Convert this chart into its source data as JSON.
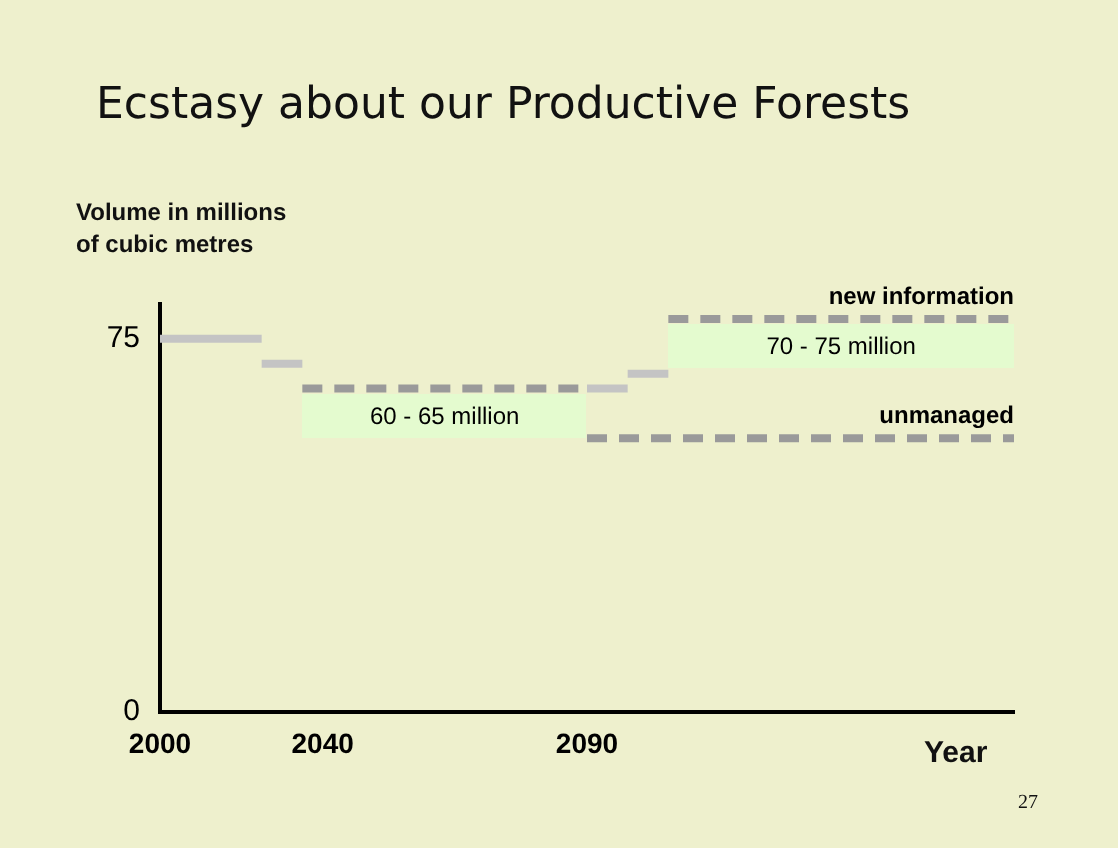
{
  "chart_data": {
    "type": "line",
    "title": "Ecstasy about our Productive Forests",
    "ylabel": "Volume in millions\nof cubic metres",
    "xlabel": "Year",
    "categories": [
      "2000",
      null,
      null,
      null,
      null,
      null,
      null,
      null,
      "2040",
      null,
      null,
      null,
      null,
      null,
      null,
      null,
      null,
      null,
      null,
      null,
      null,
      "2090",
      null,
      null,
      null,
      null,
      null,
      null,
      null,
      null,
      null,
      null,
      null,
      null,
      null,
      null,
      null,
      null,
      null,
      null,
      null,
      null,
      null
    ],
    "series": [
      {
        "color": "#c4c4c4",
        "line_style": "solid",
        "values": [
          75,
          75,
          75,
          75,
          75,
          75,
          null,
          null,
          null,
          null,
          null,
          null,
          null,
          null,
          null,
          null,
          null,
          null,
          null,
          null,
          null,
          null,
          null,
          null,
          null,
          null,
          null,
          null,
          null,
          null,
          null,
          null,
          null,
          null,
          null,
          null,
          null,
          null,
          null,
          null,
          null,
          null,
          null
        ]
      },
      {
        "color": "#c4c4c4",
        "line_style": "solid",
        "values": [
          null,
          null,
          null,
          null,
          null,
          70,
          70,
          70,
          null,
          null,
          null,
          null,
          null,
          null,
          null,
          null,
          null,
          null,
          null,
          null,
          null,
          null,
          null,
          null,
          null,
          null,
          null,
          null,
          null,
          null,
          null,
          null,
          null,
          null,
          null,
          null,
          null,
          null,
          null,
          null,
          null,
          null,
          null
        ]
      },
      {
        "color": "#9a9a9a",
        "line_style": "dashed",
        "values": [
          null,
          null,
          null,
          null,
          null,
          null,
          null,
          65,
          65,
          65,
          65,
          65,
          65,
          65,
          65,
          65,
          65,
          65,
          65,
          65,
          65,
          65,
          null,
          null,
          null,
          null,
          null,
          null,
          null,
          null,
          null,
          null,
          null,
          null,
          null,
          null,
          null,
          null,
          null,
          null,
          null,
          null,
          null
        ]
      },
      {
        "color": "#c4c4c4",
        "line_style": "solid",
        "values": [
          null,
          null,
          null,
          null,
          null,
          null,
          null,
          null,
          null,
          null,
          null,
          null,
          null,
          null,
          null,
          null,
          null,
          null,
          null,
          null,
          null,
          65,
          65,
          65,
          null,
          null,
          null,
          null,
          null,
          null,
          null,
          null,
          null,
          null,
          null,
          null,
          null,
          null,
          null,
          null,
          null,
          null,
          null
        ]
      },
      {
        "color": "#c4c4c4",
        "line_style": "solid",
        "values": [
          null,
          null,
          null,
          null,
          null,
          null,
          null,
          null,
          null,
          null,
          null,
          null,
          null,
          null,
          null,
          null,
          null,
          null,
          null,
          null,
          null,
          null,
          null,
          68,
          68,
          68,
          null,
          null,
          null,
          null,
          null,
          null,
          null,
          null,
          null,
          null,
          null,
          null,
          null,
          null,
          null,
          null,
          null
        ]
      },
      {
        "name": "new information",
        "color": "#9a9a9a",
        "line_style": "dashed",
        "values": [
          null,
          null,
          null,
          null,
          null,
          null,
          null,
          null,
          null,
          null,
          null,
          null,
          null,
          null,
          null,
          null,
          null,
          null,
          null,
          null,
          null,
          null,
          null,
          null,
          null,
          79,
          79,
          79,
          79,
          79,
          79,
          79,
          79,
          79,
          79,
          79,
          79,
          79,
          79,
          79,
          79,
          79,
          79
        ]
      },
      {
        "name": "unmanaged",
        "color": "#9a9a9a",
        "line_style": "dashed",
        "values": [
          null,
          null,
          null,
          null,
          null,
          null,
          null,
          null,
          null,
          null,
          null,
          null,
          null,
          null,
          null,
          null,
          null,
          null,
          null,
          null,
          null,
          55,
          55,
          55,
          55,
          55,
          55,
          55,
          55,
          55,
          55,
          55,
          55,
          55,
          55,
          55,
          55,
          55,
          55,
          55,
          55,
          55,
          55
        ]
      }
    ],
    "annotations": [
      "60 - 65 million",
      "70 - 75 million",
      "27"
    ],
    "ylim": [
      0,
      82
    ],
    "yticks": [
      0,
      75
    ],
    "grid": false,
    "legend": false
  }
}
